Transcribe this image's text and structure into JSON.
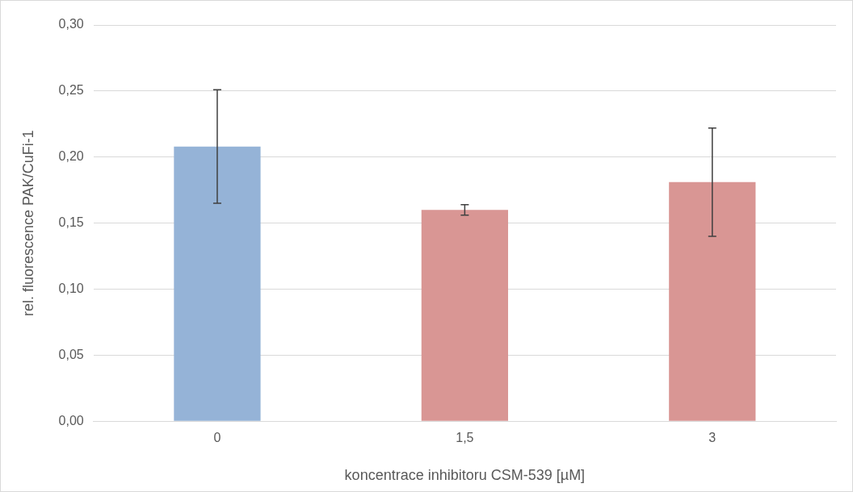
{
  "chart_data": {
    "type": "bar",
    "xlabel": "koncentrace inhibitoru CSM-539 [µM]",
    "ylabel": "rel. fluorescence PAK/CuFi-1",
    "categories": [
      "0",
      "1,5",
      "3"
    ],
    "values": [
      0.208,
      0.16,
      0.181
    ],
    "colors": [
      "#95b3d7",
      "#d99694",
      "#d99694"
    ],
    "errors": [
      0.043,
      0.004,
      0.041
    ],
    "ylim": [
      0,
      0.3
    ],
    "yticks": [
      {
        "value": 0,
        "label": "0,00"
      },
      {
        "value": 0.05,
        "label": "0,05"
      },
      {
        "value": 0.1,
        "label": "0,10"
      },
      {
        "value": 0.15,
        "label": "0,15"
      },
      {
        "value": 0.2,
        "label": "0,20"
      },
      {
        "value": 0.25,
        "label": "0,25"
      },
      {
        "value": 0.3,
        "label": "0,30"
      }
    ],
    "grid": "y"
  }
}
